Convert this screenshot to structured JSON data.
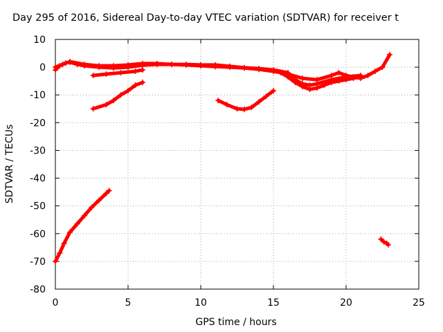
{
  "chart_data": {
    "type": "scatter",
    "title": "Day 295 of 2016, Sidereal Day-to-day VTEC variation (SDTVAR) for receiver t",
    "xlabel": "GPS time / hours",
    "ylabel": "SDTVAR / TECUs",
    "xlim": [
      0,
      25
    ],
    "ylim": [
      -80,
      10
    ],
    "xticks": [
      0,
      5,
      10,
      15,
      20,
      25
    ],
    "yticks": [
      10,
      0,
      -10,
      -20,
      -30,
      -40,
      -50,
      -60,
      -70,
      -80
    ],
    "grid": true,
    "marker": "plus",
    "color": "#ff0000",
    "series": [
      {
        "segments": [
          [
            [
              0.0,
              -70.0
            ],
            [
              0.3,
              -67.0
            ],
            [
              0.6,
              -63.5
            ],
            [
              1.0,
              -59.5
            ],
            [
              1.5,
              -56.5
            ],
            [
              2.0,
              -53.5
            ],
            [
              2.5,
              -50.5
            ],
            [
              3.0,
              -48.0
            ],
            [
              3.5,
              -45.5
            ],
            [
              3.7,
              -44.5
            ]
          ],
          [
            [
              0.0,
              -1.0
            ],
            [
              0.3,
              0.5
            ],
            [
              0.7,
              1.5
            ],
            [
              1.0,
              1.8
            ],
            [
              1.5,
              1.0
            ],
            [
              2.0,
              0.5
            ],
            [
              3.0,
              0.0
            ],
            [
              4.0,
              -0.3
            ],
            [
              5.0,
              0.0
            ],
            [
              6.0,
              0.7
            ],
            [
              7.0,
              1.0
            ],
            [
              8.0,
              1.0
            ],
            [
              9.0,
              0.8
            ],
            [
              10.0,
              0.5
            ],
            [
              11.0,
              0.2
            ],
            [
              12.0,
              0.0
            ],
            [
              13.0,
              -0.3
            ],
            [
              14.0,
              -0.8
            ],
            [
              15.0,
              -1.5
            ],
            [
              16.0,
              -2.5
            ],
            [
              17.0,
              -4.0
            ],
            [
              18.0,
              -4.5
            ],
            [
              19.0,
              -3.0
            ],
            [
              19.5,
              -2.0
            ],
            [
              20.0,
              -3.0
            ],
            [
              20.5,
              -3.5
            ],
            [
              21.0,
              -4.0
            ],
            [
              21.5,
              -3.0
            ],
            [
              22.0,
              -1.5
            ],
            [
              22.5,
              0.0
            ],
            [
              23.0,
              4.5
            ]
          ],
          [
            [
              0.0,
              0.0
            ],
            [
              0.5,
              1.0
            ],
            [
              1.0,
              2.0
            ],
            [
              2.0,
              1.0
            ],
            [
              3.0,
              0.5
            ],
            [
              4.0,
              0.5
            ],
            [
              5.0,
              0.8
            ],
            [
              6.0,
              1.3
            ],
            [
              7.0,
              1.3
            ],
            [
              8.0,
              1.0
            ],
            [
              9.0,
              1.0
            ],
            [
              10.0,
              0.8
            ],
            [
              11.0,
              0.8
            ],
            [
              12.0,
              0.3
            ],
            [
              13.0,
              -0.2
            ],
            [
              14.0,
              -0.5
            ],
            [
              15.0,
              -1.0
            ],
            [
              16.0,
              -2.0
            ]
          ],
          [
            [
              2.6,
              -3.0
            ],
            [
              3.5,
              -2.5
            ],
            [
              4.5,
              -2.0
            ],
            [
              5.5,
              -1.5
            ],
            [
              6.0,
              -1.0
            ]
          ],
          [
            [
              2.6,
              -15.0
            ],
            [
              3.5,
              -13.5
            ],
            [
              4.0,
              -12.0
            ],
            [
              4.5,
              -10.0
            ],
            [
              5.0,
              -8.5
            ],
            [
              5.5,
              -6.5
            ],
            [
              6.0,
              -5.5
            ]
          ],
          [
            [
              11.2,
              -12.0
            ],
            [
              11.8,
              -13.5
            ],
            [
              12.5,
              -15.0
            ],
            [
              13.0,
              -15.2
            ],
            [
              13.5,
              -14.5
            ],
            [
              14.0,
              -12.5
            ],
            [
              14.5,
              -10.5
            ],
            [
              15.0,
              -8.5
            ]
          ],
          [
            [
              15.5,
              -2.0
            ],
            [
              16.0,
              -3.5
            ],
            [
              16.5,
              -5.5
            ],
            [
              17.0,
              -7.0
            ],
            [
              17.5,
              -8.0
            ],
            [
              18.0,
              -7.5
            ],
            [
              18.5,
              -6.5
            ],
            [
              19.0,
              -5.5
            ],
            [
              19.5,
              -5.0
            ],
            [
              20.0,
              -4.5
            ],
            [
              20.5,
              -4.0
            ],
            [
              21.0,
              -3.5
            ]
          ],
          [
            [
              15.8,
              -2.5
            ],
            [
              16.5,
              -4.5
            ],
            [
              17.0,
              -6.0
            ],
            [
              17.5,
              -6.5
            ],
            [
              18.0,
              -6.0
            ],
            [
              19.0,
              -4.5
            ],
            [
              20.0,
              -3.5
            ],
            [
              21.0,
              -3.0
            ]
          ],
          [
            [
              22.4,
              -62.0
            ],
            [
              22.6,
              -63.0
            ],
            [
              22.8,
              -63.5
            ],
            [
              22.9,
              -64.0
            ]
          ]
        ]
      }
    ]
  }
}
